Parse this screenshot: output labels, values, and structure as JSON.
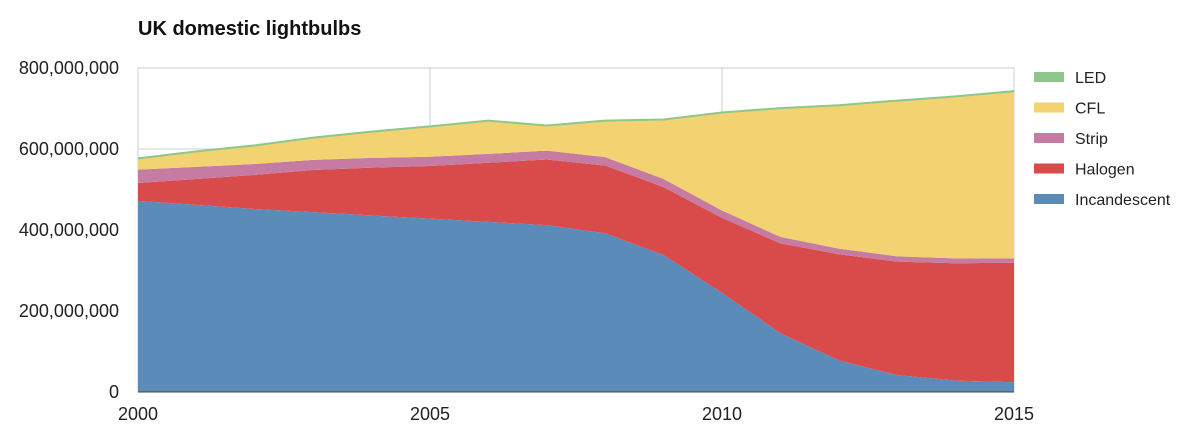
{
  "chart_data": {
    "type": "area",
    "stacked": true,
    "title": "UK domestic lightbulbs",
    "xlabel": "",
    "ylabel": "",
    "x": [
      2000,
      2001,
      2002,
      2003,
      2004,
      2005,
      2006,
      2007,
      2008,
      2009,
      2010,
      2011,
      2012,
      2013,
      2014,
      2015
    ],
    "xlim": [
      2000,
      2015
    ],
    "ylim": [
      0,
      800000000
    ],
    "x_ticks": [
      "2000",
      "2005",
      "2010",
      "2015"
    ],
    "y_ticks": [
      "0",
      "200,000,000",
      "400,000,000",
      "600,000,000",
      "800,000,000"
    ],
    "grid": true,
    "legend_position": "right",
    "series": [
      {
        "name": "Incandescent",
        "color": "#5b8bb8",
        "values": [
          472000000,
          462000000,
          452000000,
          444000000,
          436000000,
          428000000,
          420000000,
          412000000,
          392000000,
          338000000,
          245000000,
          145000000,
          78000000,
          42000000,
          28000000,
          24000000
        ]
      },
      {
        "name": "Halogen",
        "color": "#d94a4a",
        "values": [
          44000000,
          64000000,
          84000000,
          104000000,
          118000000,
          130000000,
          146000000,
          162000000,
          167000000,
          168000000,
          185000000,
          222000000,
          262000000,
          280000000,
          290000000,
          295000000
        ]
      },
      {
        "name": "Strip",
        "color": "#c67ca2",
        "values": [
          33000000,
          30000000,
          27000000,
          25000000,
          24000000,
          23000000,
          22000000,
          22000000,
          21000000,
          20000000,
          18000000,
          16000000,
          14000000,
          13000000,
          12000000,
          11000000
        ]
      },
      {
        "name": "CFL",
        "color": "#f2d271",
        "values": [
          28000000,
          38000000,
          46000000,
          55000000,
          65000000,
          75000000,
          82000000,
          62000000,
          90000000,
          147000000,
          242000000,
          318000000,
          353000000,
          383000000,
          398000000,
          410000000
        ]
      },
      {
        "name": "LED",
        "color": "#8ec78a",
        "values": [
          0,
          0,
          0,
          0,
          0,
          0,
          0,
          0,
          0,
          0,
          0,
          0,
          1000000,
          1500000,
          2000000,
          3000000
        ]
      }
    ],
    "legend_order": [
      "LED",
      "CFL",
      "Strip",
      "Halogen",
      "Incandescent"
    ]
  }
}
